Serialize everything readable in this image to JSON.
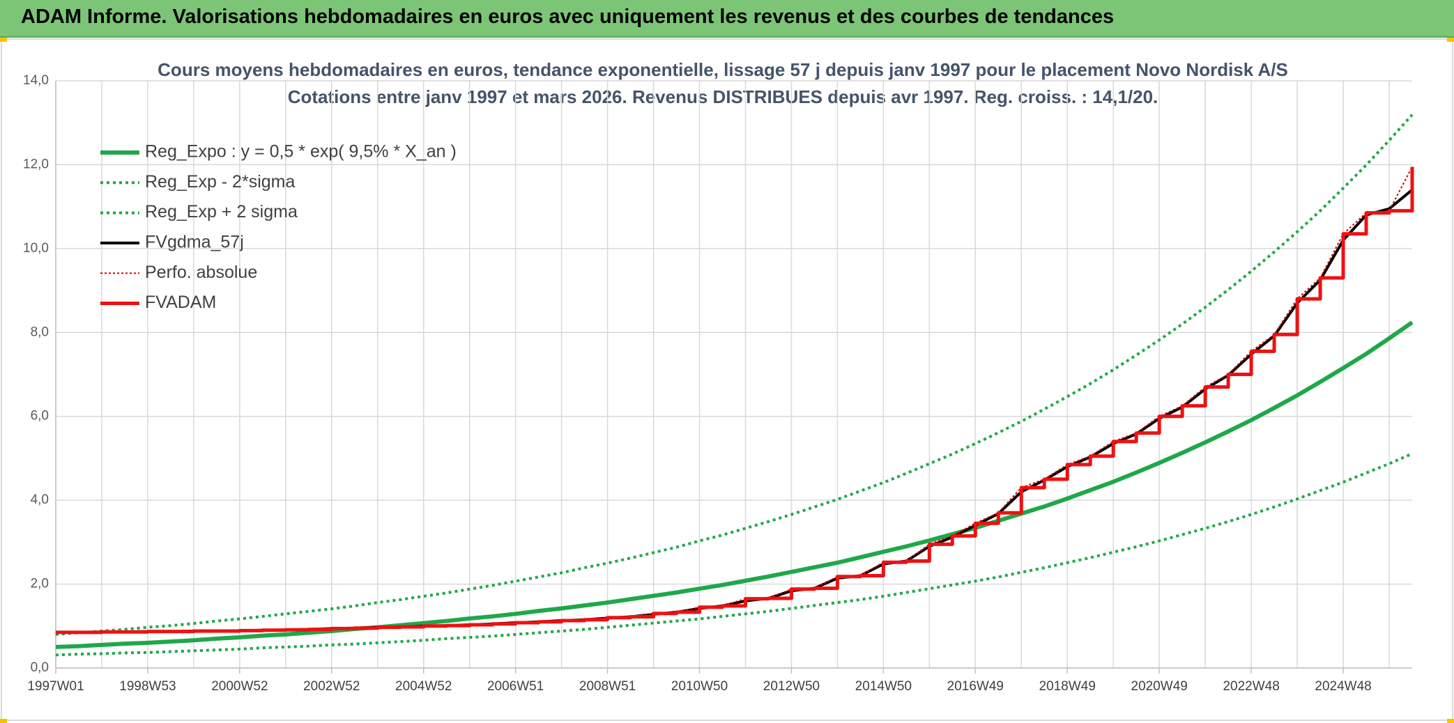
{
  "header": {
    "title": "ADAM Informe. Valorisations hebdomadaires en euros avec uniquement les revenus et des courbes de tendances"
  },
  "chart_data": {
    "type": "line",
    "title": "Cours moyens hebdomadaires en euros, tendance exponentielle, lissage 57 j depuis janv 1997 pour le placement Novo Nordisk A/S",
    "subtitle": "Cotations entre janv 1997 et mars 2026. Revenus DISTRIBUES depuis avr 1997. Reg. croiss. : 14,1/20.",
    "categories": [
      "1997W01",
      null,
      null,
      null,
      "1998W53",
      null,
      null,
      null,
      "2000W52",
      null,
      null,
      null,
      "2002W52",
      null,
      null,
      null,
      "2004W52",
      null,
      null,
      null,
      "2006W51",
      null,
      null,
      null,
      "2008W51",
      null,
      null,
      null,
      "2010W50",
      null,
      null,
      null,
      "2012W50",
      null,
      null,
      null,
      "2014W50",
      null,
      null,
      null,
      "2016W49",
      null,
      null,
      null,
      "2018W49",
      null,
      null,
      null,
      "2020W49",
      null,
      null,
      null,
      "2022W48",
      null,
      null,
      null,
      "2024W48",
      null,
      null,
      null
    ],
    "ylim": [
      0,
      14
    ],
    "yticks": [
      {
        "value": 0,
        "label": "0,0"
      },
      {
        "value": 2,
        "label": "2,0"
      },
      {
        "value": 4,
        "label": "4,0"
      },
      {
        "value": 6,
        "label": "6,0"
      },
      {
        "value": 8,
        "label": "8,0"
      },
      {
        "value": 10,
        "label": "10,0"
      },
      {
        "value": 12,
        "label": "12,0"
      },
      {
        "value": 14,
        "label": "14,0"
      }
    ],
    "grid": true,
    "series": [
      {
        "name": "Reg_Expo : y = 0,5 * exp( 9,5% *  X_an )",
        "color": "#1fa84a",
        "width": 6,
        "dash": "solid",
        "values": [
          0.5,
          0.52,
          0.55,
          0.58,
          0.6,
          0.63,
          0.66,
          0.7,
          0.73,
          0.77,
          0.8,
          0.84,
          0.88,
          0.93,
          0.97,
          1.02,
          1.07,
          1.12,
          1.18,
          1.23,
          1.29,
          1.36,
          1.42,
          1.49,
          1.56,
          1.64,
          1.72,
          1.8,
          1.89,
          1.98,
          2.08,
          2.18,
          2.29,
          2.4,
          2.51,
          2.64,
          2.77,
          2.9,
          3.04,
          3.19,
          3.34,
          3.51,
          3.68,
          3.85,
          4.04,
          4.24,
          4.44,
          4.66,
          4.89,
          5.13,
          5.38,
          5.64,
          5.91,
          6.2,
          6.5,
          6.82,
          7.15,
          7.49,
          7.86,
          8.24
        ]
      },
      {
        "name": "Reg_Exp - 2*sigma",
        "color": "#1fa84a",
        "width": 4,
        "dash": "dotted",
        "values": [
          0.31,
          0.33,
          0.34,
          0.36,
          0.37,
          0.39,
          0.41,
          0.43,
          0.45,
          0.48,
          0.5,
          0.52,
          0.55,
          0.57,
          0.6,
          0.63,
          0.66,
          0.7,
          0.73,
          0.76,
          0.8,
          0.84,
          0.88,
          0.92,
          0.97,
          1.02,
          1.07,
          1.12,
          1.17,
          1.23,
          1.29,
          1.35,
          1.42,
          1.49,
          1.56,
          1.63,
          1.71,
          1.8,
          1.89,
          1.98,
          2.07,
          2.17,
          2.28,
          2.39,
          2.51,
          2.63,
          2.76,
          2.89,
          3.03,
          3.18,
          3.33,
          3.49,
          3.66,
          3.84,
          4.03,
          4.23,
          4.43,
          4.65,
          4.87,
          5.11
        ]
      },
      {
        "name": "Reg_Exp + 2 sigma",
        "color": "#1fa84a",
        "width": 4,
        "dash": "dotted",
        "values": [
          0.8,
          0.84,
          0.88,
          0.92,
          0.97,
          1.01,
          1.06,
          1.12,
          1.17,
          1.23,
          1.29,
          1.35,
          1.41,
          1.48,
          1.56,
          1.63,
          1.71,
          1.79,
          1.88,
          1.97,
          2.07,
          2.17,
          2.27,
          2.39,
          2.5,
          2.62,
          2.75,
          2.88,
          3.03,
          3.17,
          3.33,
          3.49,
          3.66,
          3.84,
          4.02,
          4.22,
          4.42,
          4.64,
          4.87,
          5.1,
          5.35,
          5.61,
          5.88,
          6.17,
          6.47,
          6.78,
          7.11,
          7.46,
          7.82,
          8.2,
          8.6,
          9.02,
          9.46,
          9.92,
          10.4,
          10.9,
          11.44,
          11.99,
          12.58,
          13.19
        ]
      },
      {
        "name": "FVgdma_57j",
        "color": "#000000",
        "width": 4,
        "dash": "solid",
        "values": [
          0.85,
          0.85,
          0.86,
          0.86,
          0.87,
          0.87,
          0.88,
          0.88,
          0.89,
          0.9,
          0.91,
          0.92,
          0.94,
          0.95,
          0.97,
          0.98,
          1.0,
          1.01,
          1.03,
          1.05,
          1.08,
          1.1,
          1.13,
          1.15,
          1.19,
          1.22,
          1.28,
          1.33,
          1.42,
          1.48,
          1.6,
          1.66,
          1.84,
          1.9,
          2.14,
          2.2,
          2.48,
          2.55,
          2.9,
          3.12,
          3.4,
          3.68,
          4.2,
          4.48,
          4.8,
          5.03,
          5.35,
          5.58,
          5.95,
          6.22,
          6.65,
          6.98,
          7.48,
          7.92,
          8.7,
          9.25,
          10.2,
          10.8,
          10.95,
          11.4
        ]
      },
      {
        "name": "Perfo. absolue",
        "color": "#d40000",
        "width": 2,
        "dash": "dotted",
        "values": [
          0.85,
          0.85,
          0.86,
          0.86,
          0.87,
          0.87,
          0.88,
          0.88,
          0.89,
          0.9,
          0.91,
          0.92,
          0.94,
          0.95,
          0.97,
          0.98,
          1.0,
          1.01,
          1.03,
          1.05,
          1.08,
          1.1,
          1.13,
          1.15,
          1.2,
          1.22,
          1.3,
          1.33,
          1.45,
          1.48,
          1.65,
          1.66,
          1.88,
          1.9,
          2.18,
          2.2,
          2.52,
          2.55,
          2.95,
          3.15,
          3.45,
          3.7,
          4.3,
          4.5,
          4.85,
          5.05,
          5.4,
          5.6,
          6.0,
          6.25,
          6.7,
          7.0,
          7.55,
          7.95,
          8.8,
          9.3,
          10.35,
          10.85,
          10.9,
          11.95
        ]
      },
      {
        "name": "FVADAM",
        "color": "#ee1111",
        "width": 5,
        "dash": "solid",
        "step": true,
        "values": [
          0.85,
          0.85,
          0.86,
          0.86,
          0.87,
          0.87,
          0.88,
          0.88,
          0.89,
          0.9,
          0.91,
          0.92,
          0.94,
          0.95,
          0.97,
          0.98,
          1.0,
          1.01,
          1.03,
          1.05,
          1.08,
          1.1,
          1.13,
          1.15,
          1.2,
          1.22,
          1.3,
          1.33,
          1.45,
          1.48,
          1.65,
          1.66,
          1.88,
          1.9,
          2.18,
          2.2,
          2.52,
          2.55,
          2.95,
          3.15,
          3.45,
          3.7,
          4.3,
          4.5,
          4.85,
          5.05,
          5.4,
          5.6,
          6.0,
          6.25,
          6.7,
          7.0,
          7.55,
          7.95,
          8.8,
          9.3,
          10.35,
          10.85,
          10.9,
          11.95
        ]
      }
    ]
  }
}
